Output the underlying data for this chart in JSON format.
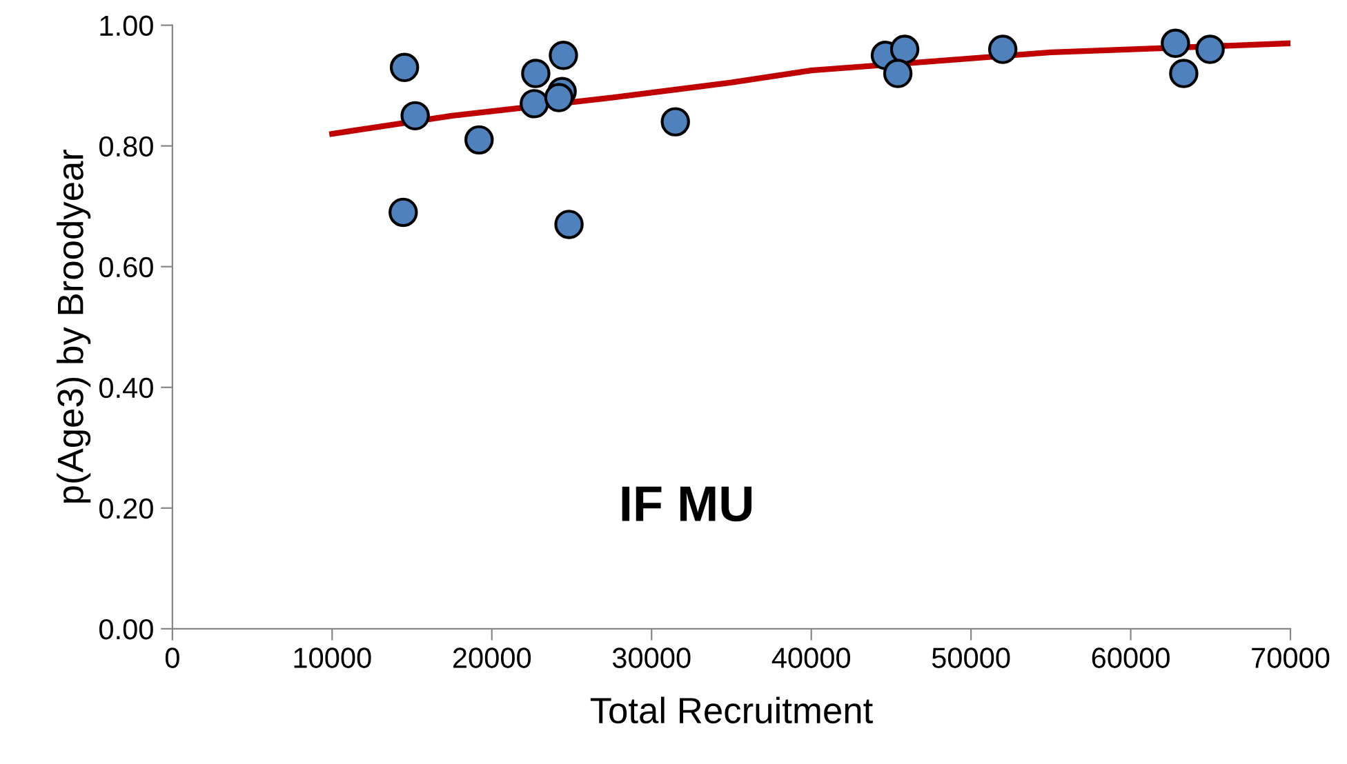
{
  "chart_data": {
    "type": "scatter",
    "xlabel": "Total Recruitment",
    "ylabel": "p(Age3) by Broodyear",
    "annotations": [
      "IF MU"
    ],
    "xlim": [
      0,
      70000
    ],
    "xticks": [
      0,
      10000,
      20000,
      30000,
      40000,
      50000,
      60000,
      70000
    ],
    "ylim": [
      0,
      1
    ],
    "yticks": [
      {
        "value": 0,
        "label": "0.00"
      },
      {
        "value": 0.2,
        "label": "0.20"
      },
      {
        "value": 0.4,
        "label": "0.40"
      },
      {
        "value": 0.6,
        "label": "0.60"
      },
      {
        "value": 0.8,
        "label": "0.80"
      },
      {
        "value": 1,
        "label": "1.00"
      }
    ],
    "grid": false,
    "marker": "circle",
    "series": [
      {
        "type": "line",
        "color": "#c00000",
        "marker": "none",
        "line_style": "solid",
        "x": [
          10000,
          12500,
          17500,
          27500,
          35000,
          40000,
          55000,
          70000
        ],
        "values": [
          0.82,
          0.83,
          0.85,
          0.88,
          0.905,
          0.925,
          0.955,
          0.97
        ]
      },
      {
        "color": "#4f81bd",
        "x": [
          14450,
          14530,
          15200,
          19200,
          22660,
          22750,
          24400,
          24480,
          24830,
          24200,
          31490,
          44640,
          45850,
          45420,
          51990,
          62800,
          64970,
          63320
        ],
        "values": [
          0.69,
          0.93,
          0.85,
          0.81,
          0.87,
          0.92,
          0.89,
          0.95,
          0.67,
          0.88,
          0.84,
          0.95,
          0.96,
          0.92,
          0.96,
          0.97,
          0.96,
          0.92
        ]
      }
    ]
  }
}
